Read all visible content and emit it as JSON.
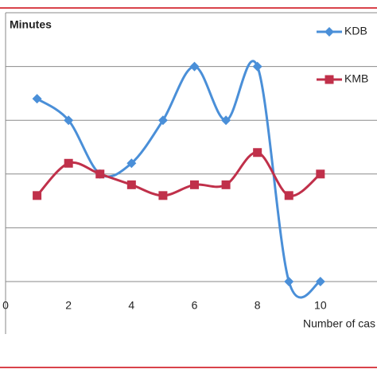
{
  "chart_data": {
    "type": "line",
    "y_label": "Minutes",
    "x_label": "Number of cas",
    "x": [
      1,
      2,
      3,
      4,
      5,
      6,
      7,
      8,
      9,
      10
    ],
    "series": [
      {
        "name": "KDB",
        "color": "#4a8fd8",
        "marker": "diamond",
        "values": [
          3.4,
          3,
          2,
          2.2,
          3,
          4,
          3,
          4,
          0,
          0
        ]
      },
      {
        "name": "KMB",
        "color": "#c0304a",
        "marker": "square",
        "values": [
          1.6,
          2.2,
          2,
          1.8,
          1.6,
          1.8,
          1.8,
          2.4,
          1.6,
          2
        ]
      }
    ],
    "xlim": [
      0,
      12
    ],
    "xticks": [
      0,
      2,
      4,
      6,
      8,
      10
    ],
    "ylim": [
      0,
      5
    ],
    "grid_values": [
      0,
      1,
      2,
      3,
      4,
      5
    ],
    "grid": true,
    "smooth": true,
    "legend": "top-right"
  }
}
